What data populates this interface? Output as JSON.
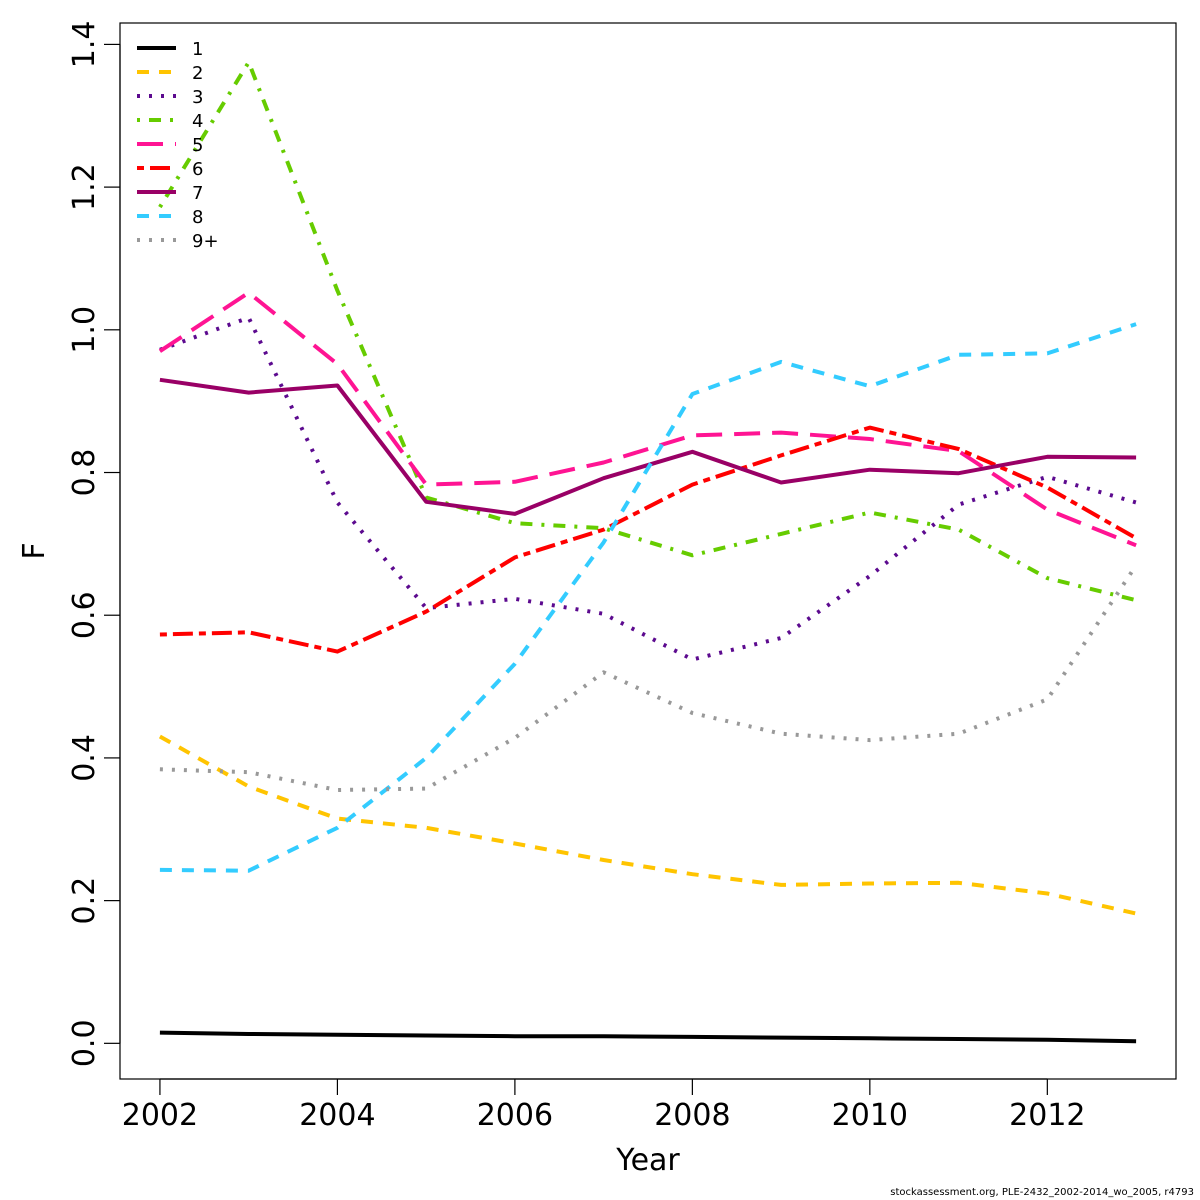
{
  "chart_data": {
    "type": "line",
    "xlabel": "Year",
    "ylabel": "F",
    "xlim": [
      2001.55,
      2013.45
    ],
    "ylim": [
      -0.05,
      1.43
    ],
    "x_ticks": [
      2002,
      2004,
      2006,
      2008,
      2010,
      2012
    ],
    "y_ticks": [
      0.0,
      0.2,
      0.4,
      0.6,
      0.8,
      1.0,
      1.2,
      1.4
    ],
    "y_tick_labels": [
      "0.0",
      "0.2",
      "0.4",
      "0.6",
      "0.8",
      "1.0",
      "1.2",
      "1.4"
    ],
    "grid": false,
    "legend_position": "top-left",
    "x": [
      2002,
      2003,
      2004,
      2005,
      2006,
      2007,
      2008,
      2009,
      2010,
      2011,
      2012,
      2013
    ],
    "series": [
      {
        "name": "1",
        "color": "#000000",
        "dash": "solid",
        "values": [
          0.015,
          0.013,
          0.012,
          0.011,
          0.01,
          0.01,
          0.009,
          0.008,
          0.007,
          0.006,
          0.005,
          0.003
        ]
      },
      {
        "name": "2",
        "color": "#FFC400",
        "dash": "dashed",
        "values": [
          0.43,
          0.36,
          0.315,
          0.302,
          0.28,
          0.257,
          0.237,
          0.222,
          0.224,
          0.225,
          0.21,
          0.182
        ]
      },
      {
        "name": "3",
        "color": "#5C0A8F",
        "dash": "dotted",
        "values": [
          0.972,
          1.017,
          0.758,
          0.61,
          0.623,
          0.602,
          0.538,
          0.568,
          0.655,
          0.755,
          0.794,
          0.758
        ]
      },
      {
        "name": "4",
        "color": "#66CC00",
        "dash": "dotdash",
        "values": [
          1.172,
          1.375,
          1.055,
          0.765,
          0.729,
          0.722,
          0.684,
          0.714,
          0.744,
          0.72,
          0.652,
          0.621
        ]
      },
      {
        "name": "5",
        "color": "#FF1493",
        "dash": "longdash",
        "values": [
          0.97,
          1.052,
          0.952,
          0.783,
          0.787,
          0.814,
          0.852,
          0.856,
          0.847,
          0.83,
          0.748,
          0.698
        ]
      },
      {
        "name": "6",
        "color": "#FF0000",
        "dash": "twodash",
        "values": [
          0.573,
          0.576,
          0.549,
          0.605,
          0.681,
          0.72,
          0.783,
          0.824,
          0.863,
          0.833,
          0.779,
          0.708
        ]
      },
      {
        "name": "7",
        "color": "#990066",
        "dash": "solid",
        "values": [
          0.93,
          0.912,
          0.922,
          0.759,
          0.742,
          0.792,
          0.829,
          0.786,
          0.804,
          0.799,
          0.822,
          0.821
        ]
      },
      {
        "name": "8",
        "color": "#33CCFF",
        "dash": "dashed",
        "values": [
          0.243,
          0.242,
          0.302,
          0.4,
          0.532,
          0.702,
          0.91,
          0.955,
          0.921,
          0.965,
          0.967,
          1.008
        ]
      },
      {
        "name": "9+",
        "color": "#999999",
        "dash": "dotted",
        "values": [
          0.384,
          0.38,
          0.355,
          0.357,
          0.428,
          0.52,
          0.463,
          0.434,
          0.425,
          0.434,
          0.482,
          0.67
        ]
      }
    ]
  },
  "footer": "stockassessment.org, PLE-2432_2002-2014_wo_2005, r4793"
}
